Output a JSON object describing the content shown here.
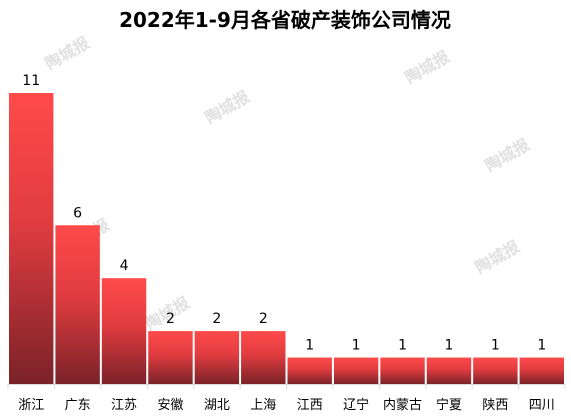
{
  "chart_data": {
    "type": "bar",
    "title": "2022年1-9月各省破产装饰公司情况",
    "categories": [
      "浙江",
      "广东",
      "江苏",
      "安徽",
      "湖北",
      "上海",
      "江西",
      "辽宁",
      "内蒙古",
      "宁夏",
      "陕西",
      "四川"
    ],
    "values": [
      11,
      6,
      4,
      2,
      2,
      2,
      1,
      1,
      1,
      1,
      1,
      1
    ],
    "data_labels": [
      "11",
      "6",
      "4",
      "2",
      "2",
      "2",
      "1",
      "1",
      "1",
      "1",
      "1",
      "1"
    ],
    "xlabel": "",
    "ylabel": "",
    "ylim": [
      0,
      11
    ],
    "grid": false,
    "legend": "none",
    "bar_color_top": "#ff4a4a",
    "bar_color_bottom": "#7a2228",
    "watermark": "陶城报"
  }
}
